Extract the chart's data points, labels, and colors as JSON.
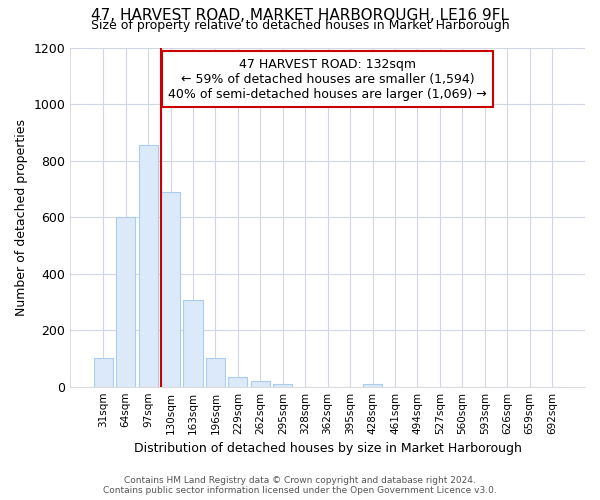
{
  "title": "47, HARVEST ROAD, MARKET HARBOROUGH, LE16 9FL",
  "subtitle": "Size of property relative to detached houses in Market Harborough",
  "xlabel": "Distribution of detached houses by size in Market Harborough",
  "ylabel": "Number of detached properties",
  "categories": [
    "31sqm",
    "64sqm",
    "97sqm",
    "130sqm",
    "163sqm",
    "196sqm",
    "229sqm",
    "262sqm",
    "295sqm",
    "328sqm",
    "362sqm",
    "395sqm",
    "428sqm",
    "461sqm",
    "494sqm",
    "527sqm",
    "560sqm",
    "593sqm",
    "626sqm",
    "659sqm",
    "692sqm"
  ],
  "values": [
    100,
    600,
    855,
    690,
    305,
    100,
    33,
    20,
    10,
    0,
    0,
    0,
    10,
    0,
    0,
    0,
    0,
    0,
    0,
    0,
    0
  ],
  "bar_color": "#dce9f8",
  "bar_edge_color": "#aaccee",
  "vline_color": "#cc0000",
  "annotation_text": "47 HARVEST ROAD: 132sqm\n← 59% of detached houses are smaller (1,594)\n40% of semi-detached houses are larger (1,069) →",
  "annotation_box_facecolor": "#ffffff",
  "annotation_box_edgecolor": "#cc0000",
  "ylim": [
    0,
    1200
  ],
  "yticks": [
    0,
    200,
    400,
    600,
    800,
    1000,
    1200
  ],
  "footer_line1": "Contains HM Land Registry data © Crown copyright and database right 2024.",
  "footer_line2": "Contains public sector information licensed under the Open Government Licence v3.0.",
  "bg_color": "#ffffff",
  "plot_bg_color": "#ffffff",
  "grid_color": "#d0d8e8"
}
